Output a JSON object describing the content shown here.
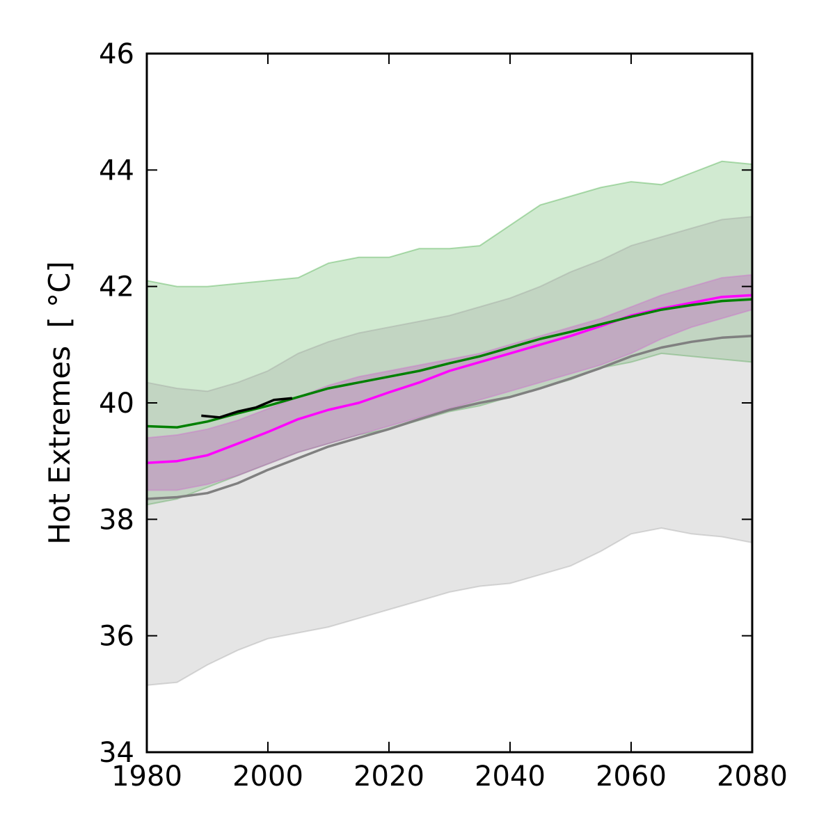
{
  "chart_data": {
    "type": "area",
    "title": "",
    "xlabel": "",
    "ylabel": "Hot Extremes",
    "ylabel_unit": "[ °C]",
    "xlim": [
      1980,
      2080
    ],
    "ylim": [
      34,
      46
    ],
    "xticks": [
      1980,
      2000,
      2020,
      2040,
      2060,
      2080
    ],
    "yticks": [
      34,
      36,
      38,
      40,
      42,
      44,
      46
    ],
    "grid": false,
    "legend": "none",
    "bands": [
      {
        "color": "#2ca02c",
        "opacity": 0.22,
        "edge_color": "#2ca02c",
        "x": [
          1980,
          1985,
          1990,
          1995,
          2000,
          2005,
          2010,
          2015,
          2020,
          2025,
          2030,
          2035,
          2040,
          2045,
          2050,
          2055,
          2060,
          2065,
          2070,
          2075,
          2080
        ],
        "upper": [
          42.1,
          42.0,
          42.0,
          42.05,
          42.1,
          42.15,
          42.4,
          42.5,
          42.5,
          42.65,
          42.65,
          42.7,
          43.05,
          43.4,
          43.55,
          43.7,
          43.8,
          43.75,
          43.95,
          44.15,
          44.1
        ],
        "lower": [
          38.25,
          38.35,
          38.55,
          38.75,
          38.95,
          39.15,
          39.3,
          39.45,
          39.55,
          39.7,
          39.85,
          39.95,
          40.1,
          40.25,
          40.4,
          40.6,
          40.7,
          40.85,
          40.8,
          40.75,
          40.7
        ]
      },
      {
        "color": "#999999",
        "opacity": 0.25,
        "edge_color": "#999999",
        "x": [
          1980,
          1985,
          1990,
          1995,
          2000,
          2005,
          2010,
          2015,
          2020,
          2025,
          2030,
          2035,
          2040,
          2045,
          2050,
          2055,
          2060,
          2065,
          2070,
          2075,
          2080
        ],
        "upper": [
          40.35,
          40.25,
          40.2,
          40.35,
          40.55,
          40.85,
          41.05,
          41.2,
          41.3,
          41.4,
          41.5,
          41.65,
          41.8,
          42.0,
          42.25,
          42.45,
          42.7,
          42.85,
          43.0,
          43.15,
          43.2
        ],
        "lower": [
          35.15,
          35.2,
          35.5,
          35.75,
          35.95,
          36.05,
          36.15,
          36.3,
          36.45,
          36.6,
          36.75,
          36.85,
          36.9,
          37.05,
          37.2,
          37.45,
          37.75,
          37.85,
          37.75,
          37.7,
          37.6
        ]
      },
      {
        "color": "#c000c0",
        "opacity": 0.2,
        "edge_color": "#d060d0",
        "x": [
          1980,
          1985,
          1990,
          1995,
          2000,
          2005,
          2010,
          2015,
          2020,
          2025,
          2030,
          2035,
          2040,
          2045,
          2050,
          2055,
          2060,
          2065,
          2070,
          2075,
          2080
        ],
        "upper": [
          39.4,
          39.45,
          39.55,
          39.7,
          39.9,
          40.1,
          40.3,
          40.45,
          40.55,
          40.65,
          40.75,
          40.85,
          41.0,
          41.15,
          41.3,
          41.45,
          41.65,
          41.85,
          42.0,
          42.15,
          42.2
        ],
        "lower": [
          38.5,
          38.5,
          38.6,
          38.75,
          38.95,
          39.15,
          39.3,
          39.45,
          39.6,
          39.75,
          39.9,
          40.05,
          40.2,
          40.35,
          40.5,
          40.65,
          40.85,
          41.1,
          41.3,
          41.45,
          41.6
        ]
      }
    ],
    "series": [
      {
        "color": "#808080",
        "x": [
          1980,
          1985,
          1990,
          1995,
          2000,
          2005,
          2010,
          2015,
          2020,
          2025,
          2030,
          2035,
          2040,
          2045,
          2050,
          2055,
          2060,
          2065,
          2070,
          2075,
          2080
        ],
        "values": [
          38.35,
          38.38,
          38.45,
          38.62,
          38.85,
          39.05,
          39.25,
          39.4,
          39.55,
          39.72,
          39.88,
          40.0,
          40.1,
          40.25,
          40.42,
          40.6,
          40.8,
          40.95,
          41.05,
          41.12,
          41.15
        ]
      },
      {
        "color": "#ff00ff",
        "x": [
          1980,
          1985,
          1990,
          1995,
          2000,
          2005,
          2010,
          2015,
          2020,
          2025,
          2030,
          2035,
          2040,
          2045,
          2050,
          2055,
          2060,
          2065,
          2070,
          2075,
          2080
        ],
        "values": [
          38.97,
          39.0,
          39.1,
          39.3,
          39.5,
          39.72,
          39.88,
          40.0,
          40.18,
          40.35,
          40.55,
          40.7,
          40.85,
          41.0,
          41.15,
          41.32,
          41.5,
          41.62,
          41.72,
          41.82,
          41.85
        ]
      },
      {
        "color": "#008000",
        "x": [
          1980,
          1985,
          1990,
          1995,
          2000,
          2005,
          2010,
          2015,
          2020,
          2025,
          2030,
          2035,
          2040,
          2045,
          2050,
          2055,
          2060,
          2065,
          2070,
          2075,
          2080
        ],
        "values": [
          39.6,
          39.58,
          39.68,
          39.82,
          39.95,
          40.1,
          40.25,
          40.35,
          40.45,
          40.55,
          40.68,
          40.8,
          40.95,
          41.1,
          41.22,
          41.35,
          41.48,
          41.6,
          41.68,
          41.75,
          41.78
        ]
      },
      {
        "color": "#000000",
        "x": [
          1989,
          1992,
          1995,
          1998,
          2001,
          2004
        ],
        "values": [
          39.78,
          39.75,
          39.85,
          39.92,
          40.05,
          40.08
        ]
      }
    ]
  }
}
